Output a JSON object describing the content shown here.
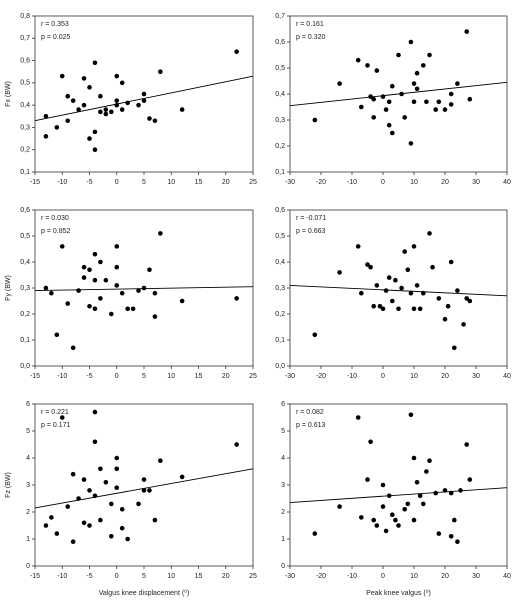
{
  "chart_data": [
    {
      "type": "scatter",
      "ylabel": "Fx (BW)",
      "annotations": [
        "r = 0.353",
        "p = 0.025"
      ],
      "color": "#000000",
      "x": [
        -13,
        -13,
        -11,
        -10,
        -9,
        -9,
        -8,
        -7,
        -6,
        -6,
        -5,
        -5,
        -4,
        -4,
        -4,
        -3,
        -3,
        -2,
        -2,
        -1,
        0,
        0,
        0,
        1,
        1,
        2,
        4,
        5,
        5,
        6,
        7,
        8,
        12,
        22
      ],
      "values": [
        0.26,
        0.35,
        0.3,
        0.53,
        0.33,
        0.44,
        0.42,
        0.38,
        0.52,
        0.4,
        0.48,
        0.25,
        0.59,
        0.28,
        0.2,
        0.37,
        0.44,
        0.36,
        0.38,
        0.37,
        0.53,
        0.4,
        0.42,
        0.5,
        0.38,
        0.41,
        0.4,
        0.45,
        0.42,
        0.34,
        0.33,
        0.55,
        0.38,
        0.64
      ],
      "trend_line": {
        "x": [
          -15,
          25
        ],
        "y": [
          0.33,
          0.53
        ]
      },
      "xlim": [
        -15,
        25
      ],
      "xticks": [
        -15,
        -10,
        -5,
        0,
        5,
        10,
        15,
        20,
        25
      ],
      "ylim": [
        0.1,
        0.8
      ],
      "yticks": [
        {
          "value": 0.1,
          "label": "0,1"
        },
        {
          "value": 0.2,
          "label": "0,2"
        },
        {
          "value": 0.3,
          "label": "0,3"
        },
        {
          "value": 0.4,
          "label": "0,4"
        },
        {
          "value": 0.5,
          "label": "0,5"
        },
        {
          "value": 0.6,
          "label": "0,6"
        },
        {
          "value": 0.7,
          "label": "0,7"
        },
        {
          "value": 0.8,
          "label": "0,8"
        }
      ]
    },
    {
      "type": "scatter",
      "annotations": [
        "r = 0.161",
        "p = 0.320"
      ],
      "color": "#000000",
      "x": [
        -22,
        -14,
        -8,
        -7,
        -5,
        -4,
        -3,
        -3,
        -2,
        0,
        1,
        2,
        2,
        3,
        3,
        5,
        6,
        7,
        9,
        9,
        10,
        10,
        11,
        11,
        13,
        14,
        15,
        17,
        18,
        20,
        22,
        22,
        24,
        27,
        28
      ],
      "values": [
        0.3,
        0.44,
        0.53,
        0.35,
        0.51,
        0.39,
        0.31,
        0.38,
        0.49,
        0.39,
        0.34,
        0.37,
        0.28,
        0.25,
        0.43,
        0.55,
        0.4,
        0.31,
        0.21,
        0.6,
        0.44,
        0.37,
        0.48,
        0.42,
        0.51,
        0.37,
        0.55,
        0.34,
        0.37,
        0.34,
        0.4,
        0.36,
        0.44,
        0.64,
        0.38
      ],
      "trend_line": {
        "x": [
          -30,
          40
        ],
        "y": [
          0.355,
          0.445
        ]
      },
      "xlim": [
        -30,
        40
      ],
      "xticks": [
        -30,
        -20,
        -10,
        0,
        10,
        20,
        30,
        40
      ],
      "ylim": [
        0.1,
        0.7
      ],
      "yticks": [
        {
          "value": 0.1,
          "label": "0,1"
        },
        {
          "value": 0.2,
          "label": "0,2"
        },
        {
          "value": 0.3,
          "label": "0,3"
        },
        {
          "value": 0.4,
          "label": "0,4"
        },
        {
          "value": 0.5,
          "label": "0,5"
        },
        {
          "value": 0.6,
          "label": "0,6"
        },
        {
          "value": 0.7,
          "label": "0,7"
        }
      ]
    },
    {
      "type": "scatter",
      "ylabel": "Fy (BW)",
      "annotations": [
        "r = 0.030",
        "p = 0.852"
      ],
      "color": "#000000",
      "x": [
        -13,
        -12,
        -11,
        -10,
        -9,
        -8,
        -7,
        -6,
        -6,
        -5,
        -5,
        -4,
        -4,
        -4,
        -3,
        -3,
        -2,
        -1,
        0,
        0,
        0,
        1,
        2,
        3,
        4,
        5,
        6,
        7,
        7,
        8,
        12,
        22
      ],
      "values": [
        0.3,
        0.28,
        0.12,
        0.46,
        0.24,
        0.07,
        0.29,
        0.38,
        0.34,
        0.37,
        0.23,
        0.43,
        0.33,
        0.22,
        0.4,
        0.26,
        0.33,
        0.2,
        0.46,
        0.38,
        0.31,
        0.28,
        0.22,
        0.22,
        0.29,
        0.3,
        0.37,
        0.19,
        0.28,
        0.51,
        0.25,
        0.26
      ],
      "trend_line": {
        "x": [
          -15,
          25
        ],
        "y": [
          0.29,
          0.305
        ]
      },
      "xlim": [
        -15,
        25
      ],
      "xticks": [
        -15,
        -10,
        -5,
        0,
        5,
        10,
        15,
        20,
        25
      ],
      "ylim": [
        0,
        0.6
      ],
      "yticks": [
        {
          "value": 0,
          "label": "0,0"
        },
        {
          "value": 0.1,
          "label": "0,1"
        },
        {
          "value": 0.2,
          "label": "0,2"
        },
        {
          "value": 0.3,
          "label": "0,3"
        },
        {
          "value": 0.4,
          "label": "0,4"
        },
        {
          "value": 0.5,
          "label": "0,5"
        },
        {
          "value": 0.6,
          "label": "0,6"
        }
      ]
    },
    {
      "type": "scatter",
      "annotations": [
        "r = -0.071",
        "p = 0.663"
      ],
      "color": "#000000",
      "x": [
        -22,
        -14,
        -8,
        -7,
        -5,
        -4,
        -3,
        -2,
        -1,
        0,
        1,
        2,
        3,
        4,
        5,
        6,
        7,
        8,
        9,
        10,
        10,
        11,
        12,
        13,
        15,
        16,
        18,
        20,
        21,
        22,
        23,
        24,
        26,
        27,
        28
      ],
      "values": [
        0.12,
        0.36,
        0.46,
        0.28,
        0.39,
        0.38,
        0.23,
        0.31,
        0.23,
        0.22,
        0.29,
        0.34,
        0.25,
        0.33,
        0.22,
        0.3,
        0.44,
        0.37,
        0.28,
        0.22,
        0.46,
        0.31,
        0.22,
        0.28,
        0.51,
        0.38,
        0.26,
        0.18,
        0.23,
        0.4,
        0.07,
        0.29,
        0.16,
        0.26,
        0.25
      ],
      "trend_line": {
        "x": [
          -30,
          40
        ],
        "y": [
          0.31,
          0.27
        ]
      },
      "xlim": [
        -30,
        40
      ],
      "xticks": [
        -30,
        -20,
        -10,
        0,
        10,
        20,
        30,
        40
      ],
      "ylim": [
        0,
        0.6
      ],
      "yticks": [
        {
          "value": 0,
          "label": "0,0"
        },
        {
          "value": 0.1,
          "label": "0,1"
        },
        {
          "value": 0.2,
          "label": "0,2"
        },
        {
          "value": 0.3,
          "label": "0,3"
        },
        {
          "value": 0.4,
          "label": "0,4"
        },
        {
          "value": 0.5,
          "label": "0,5"
        },
        {
          "value": 0.6,
          "label": "0,6"
        }
      ]
    },
    {
      "type": "scatter",
      "ylabel": "Fz (BW)",
      "xlabel": "Valgus knee displacement (⁰)",
      "annotations": [
        "r = 0.221",
        "p = 0.171"
      ],
      "color": "#000000",
      "x": [
        -13,
        -12,
        -11,
        -10,
        -9,
        -8,
        -8,
        -7,
        -6,
        -6,
        -5,
        -5,
        -4,
        -4,
        -4,
        -3,
        -3,
        -2,
        -1,
        -1,
        0,
        0,
        0,
        1,
        1,
        2,
        4,
        5,
        5,
        6,
        7,
        8,
        12,
        22
      ],
      "values": [
        1.5,
        1.8,
        1.2,
        5.5,
        2.2,
        0.9,
        3.4,
        2.5,
        3.2,
        1.6,
        2.8,
        1.5,
        5.7,
        4.6,
        2.6,
        1.7,
        3.6,
        3.1,
        2.3,
        1.1,
        4.0,
        3.6,
        2.9,
        2.1,
        1.4,
        1.0,
        2.3,
        3.2,
        2.8,
        2.8,
        1.7,
        3.9,
        3.3,
        4.5
      ],
      "trend_line": {
        "x": [
          -15,
          25
        ],
        "y": [
          2.15,
          3.6
        ]
      },
      "xlim": [
        -15,
        25
      ],
      "xticks": [
        -15,
        -10,
        -5,
        0,
        5,
        10,
        15,
        20,
        25
      ],
      "ylim": [
        0,
        6
      ],
      "yticks": [
        0,
        1,
        2,
        3,
        4,
        5,
        6
      ]
    },
    {
      "type": "scatter",
      "xlabel": "Peak knee valgus (⁰)",
      "annotations": [
        "r = 0.082",
        "p = 0.613"
      ],
      "color": "#000000",
      "x": [
        -22,
        -14,
        -8,
        -7,
        -5,
        -4,
        -3,
        -2,
        0,
        0,
        1,
        2,
        3,
        4,
        5,
        7,
        8,
        9,
        10,
        10,
        11,
        12,
        13,
        14,
        15,
        17,
        18,
        20,
        22,
        22,
        23,
        24,
        25,
        27,
        28
      ],
      "values": [
        1.2,
        2.2,
        5.5,
        1.8,
        3.2,
        4.6,
        1.7,
        1.5,
        2.2,
        3.0,
        1.3,
        2.6,
        1.9,
        1.7,
        1.5,
        2.1,
        2.3,
        5.6,
        4.0,
        1.7,
        3.1,
        2.6,
        2.3,
        3.5,
        3.9,
        2.7,
        1.2,
        2.8,
        2.7,
        1.1,
        1.7,
        0.9,
        2.8,
        4.5,
        3.2
      ],
      "trend_line": {
        "x": [
          -30,
          40
        ],
        "y": [
          2.35,
          2.9
        ]
      },
      "xlim": [
        -30,
        40
      ],
      "xticks": [
        -30,
        -20,
        -10,
        0,
        10,
        20,
        30,
        40
      ],
      "ylim": [
        0,
        6
      ],
      "yticks": [
        0,
        1,
        2,
        3,
        4,
        5,
        6
      ]
    }
  ]
}
